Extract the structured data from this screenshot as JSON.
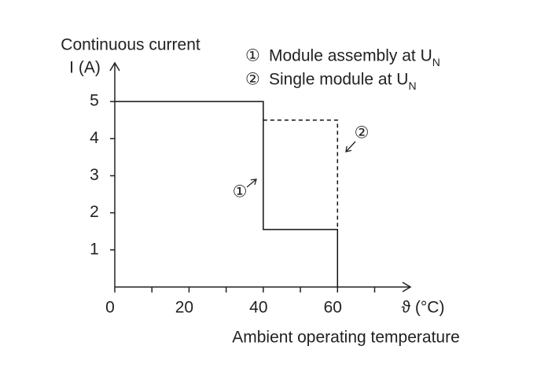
{
  "chart_data": {
    "type": "line",
    "y_label": [
      "Continuous current",
      "I (A)"
    ],
    "x_unit_label": "ϑ (°C)",
    "x_label": "Ambient operating temperature",
    "xlim": [
      0,
      79
    ],
    "ylim": [
      0,
      6
    ],
    "xticks": [
      0,
      20,
      40,
      60
    ],
    "xminor_ticks": [
      10,
      30,
      50,
      70
    ],
    "yticks": [
      1,
      2,
      3,
      4,
      5
    ],
    "legend": "top-right",
    "series": [
      {
        "marker": "①",
        "name": "Module assembly at U",
        "name_subscript": "N",
        "color": "#111111",
        "dash": false,
        "x": [
          0,
          40,
          40,
          60,
          60
        ],
        "values": [
          5,
          5,
          1.55,
          1.55,
          0
        ]
      },
      {
        "marker": "②",
        "name": "Single module at U",
        "name_subscript": "N",
        "color": "#111111",
        "dash": true,
        "x": [
          40,
          60,
          60
        ],
        "values": [
          4.5,
          4.5,
          1.55
        ]
      }
    ]
  }
}
